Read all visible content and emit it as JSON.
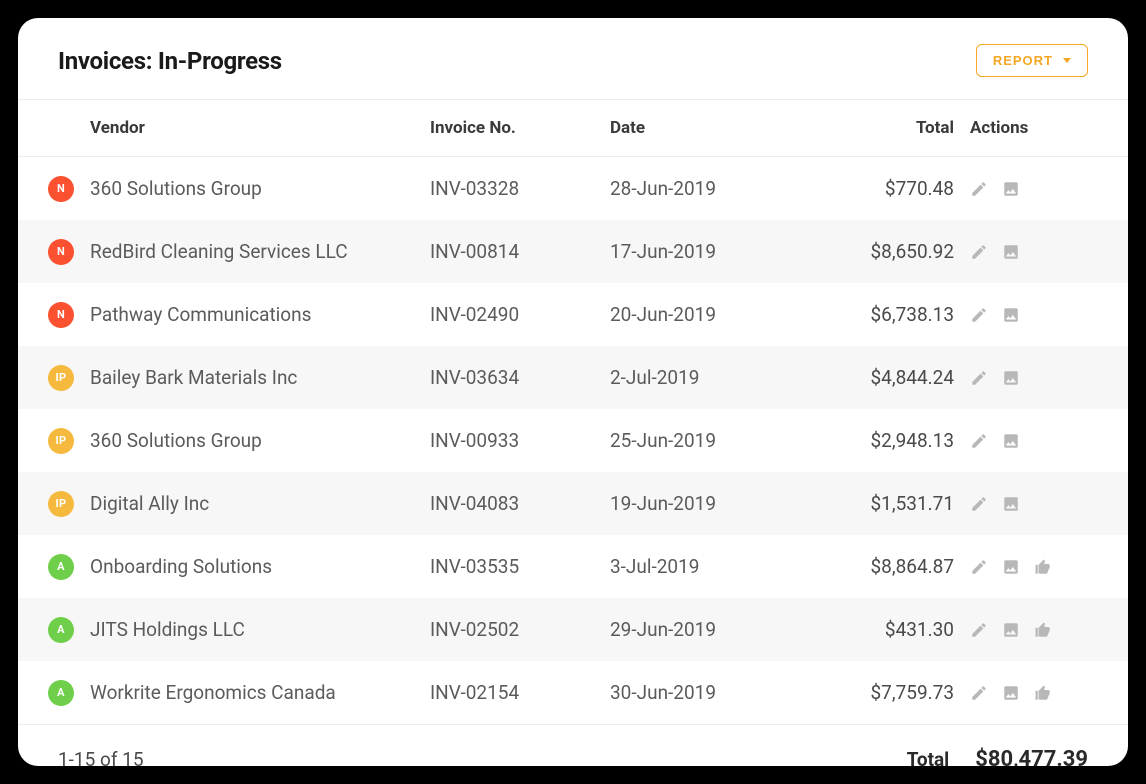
{
  "page": {
    "title": "Invoices: In-Progress",
    "report_button_label": "REPORT"
  },
  "status_colors": {
    "N": "#fc5130",
    "IP": "#f5b93e",
    "A": "#6fcf4a"
  },
  "colors": {
    "accent": "#f5a623",
    "row_alt_bg": "#f7f7f7",
    "icon": "#b8b8b8",
    "text_primary": "#1a1a1a",
    "text_body": "#5b5b5b",
    "border": "#ececec"
  },
  "table": {
    "columns": {
      "vendor": "Vendor",
      "invoice_no": "Invoice No.",
      "date": "Date",
      "total": "Total",
      "actions": "Actions"
    },
    "rows": [
      {
        "status": "N",
        "vendor": "360 Solutions Group",
        "invoice_no": "INV-03328",
        "date": "28-Jun-2019",
        "total": "$770.48",
        "show_thumb": false
      },
      {
        "status": "N",
        "vendor": "RedBird Cleaning Services LLC",
        "invoice_no": "INV-00814",
        "date": "17-Jun-2019",
        "total": "$8,650.92",
        "show_thumb": false
      },
      {
        "status": "N",
        "vendor": "Pathway Communications",
        "invoice_no": "INV-02490",
        "date": "20-Jun-2019",
        "total": "$6,738.13",
        "show_thumb": false
      },
      {
        "status": "IP",
        "vendor": "Bailey Bark Materials Inc",
        "invoice_no": "INV-03634",
        "date": "2-Jul-2019",
        "total": "$4,844.24",
        "show_thumb": false
      },
      {
        "status": "IP",
        "vendor": "360 Solutions Group",
        "invoice_no": "INV-00933",
        "date": "25-Jun-2019",
        "total": "$2,948.13",
        "show_thumb": false
      },
      {
        "status": "IP",
        "vendor": "Digital Ally Inc",
        "invoice_no": "INV-04083",
        "date": "19-Jun-2019",
        "total": "$1,531.71",
        "show_thumb": false
      },
      {
        "status": "A",
        "vendor": "Onboarding Solutions",
        "invoice_no": "INV-03535",
        "date": "3-Jul-2019",
        "total": "$8,864.87",
        "show_thumb": true
      },
      {
        "status": "A",
        "vendor": "JITS Holdings LLC",
        "invoice_no": "INV-02502",
        "date": "29-Jun-2019",
        "total": "$431.30",
        "show_thumb": true
      },
      {
        "status": "A",
        "vendor": "Workrite Ergonomics Canada",
        "invoice_no": "INV-02154",
        "date": "30-Jun-2019",
        "total": "$7,759.73",
        "show_thumb": true
      }
    ]
  },
  "footer": {
    "range": "1-15 of 15",
    "total_label": "Total",
    "total_value": "$80,477.39"
  }
}
